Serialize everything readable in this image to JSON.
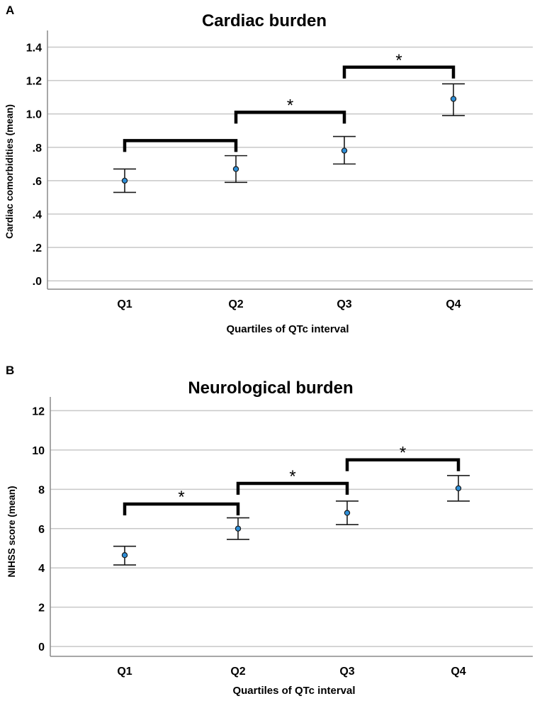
{
  "colors": {
    "grid": "#c8c8c8",
    "axis": "#8a8a8a",
    "point_fill": "#2e8fd8",
    "point_stroke": "#1a1a1a",
    "errorbar": "#1a1a1a",
    "bracket": "#000000",
    "text": "#000000"
  },
  "chart_data": [
    {
      "panel_label": "A",
      "type": "scatter",
      "title": "Cardiac burden",
      "xlabel": "Quartiles of QTc interval",
      "ylabel": "Cardiac comorbidities (mean)",
      "categories": [
        "Q1",
        "Q2",
        "Q3",
        "Q4"
      ],
      "ylim": [
        -0.05,
        1.5
      ],
      "yticks": [
        0.0,
        0.2,
        0.4,
        0.6,
        0.8,
        1.0,
        1.2,
        1.4
      ],
      "ytick_labels": [
        ".0",
        ".2",
        ".4",
        ".6",
        ".8",
        "1.0",
        "1.2",
        "1.4"
      ],
      "grid": true,
      "series": [
        {
          "name": "mean",
          "values": [
            0.6,
            0.67,
            0.78,
            1.09
          ],
          "lower": [
            0.53,
            0.59,
            0.7,
            0.99
          ],
          "upper": [
            0.67,
            0.75,
            0.865,
            1.18
          ]
        }
      ],
      "significance": [
        {
          "from": 0,
          "to": 1,
          "y": 0.84,
          "label": ""
        },
        {
          "from": 1,
          "to": 2,
          "y": 1.01,
          "label": "*"
        },
        {
          "from": 2,
          "to": 3,
          "y": 1.28,
          "label": "*"
        }
      ]
    },
    {
      "panel_label": "B",
      "type": "scatter",
      "title": "Neurological burden",
      "xlabel": "Quartiles of QTc interval",
      "ylabel": "NIHSS score (mean)",
      "categories": [
        "Q1",
        "Q2",
        "Q3",
        "Q4"
      ],
      "ylim": [
        -0.5,
        12.7
      ],
      "yticks": [
        0,
        2,
        4,
        6,
        8,
        10,
        12
      ],
      "ytick_labels": [
        "0",
        "2",
        "4",
        "6",
        "8",
        "10",
        "12"
      ],
      "grid": true,
      "series": [
        {
          "name": "mean",
          "values": [
            4.65,
            6.0,
            6.8,
            8.05
          ],
          "lower": [
            4.15,
            5.45,
            6.2,
            7.4
          ],
          "upper": [
            5.1,
            6.55,
            7.4,
            8.7
          ]
        }
      ],
      "significance": [
        {
          "from": 0,
          "to": 1,
          "y": 7.25,
          "label": "*"
        },
        {
          "from": 1,
          "to": 2,
          "y": 8.3,
          "label": "*"
        },
        {
          "from": 2,
          "to": 3,
          "y": 9.5,
          "label": "*"
        }
      ]
    }
  ]
}
